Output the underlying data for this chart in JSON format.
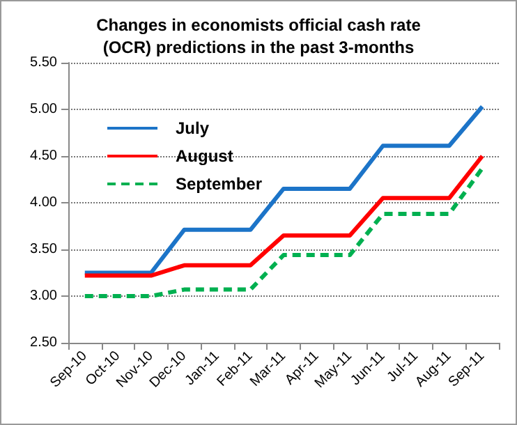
{
  "chart_data": {
    "type": "line",
    "title": "Changes in economists official cash rate\n(OCR) predictions in the past 3-months",
    "categories": [
      "Sep-10",
      "Oct-10",
      "Nov-10",
      "Dec-10",
      "Jan-11",
      "Feb-11",
      "Mar-11",
      "Apr-11",
      "May-11",
      "Jun-11",
      "Jul-11",
      "Aug-11",
      "Sep-11"
    ],
    "series": [
      {
        "name": "July",
        "color": "#1c74c8",
        "values": [
          3.25,
          3.25,
          3.25,
          3.71,
          3.71,
          3.71,
          4.15,
          4.15,
          4.15,
          4.61,
          4.61,
          4.61,
          5.03
        ]
      },
      {
        "name": "August",
        "color": "#ff0000",
        "values": [
          3.22,
          3.22,
          3.22,
          3.33,
          3.33,
          3.33,
          3.65,
          3.65,
          3.65,
          4.05,
          4.05,
          4.05,
          4.5
        ]
      },
      {
        "name": "September",
        "color": "#00b050",
        "line_style": "dashed",
        "values": [
          3.0,
          3.0,
          3.0,
          3.07,
          3.07,
          3.07,
          3.44,
          3.44,
          3.44,
          3.88,
          3.88,
          3.88,
          4.37
        ]
      }
    ],
    "ylim": [
      2.5,
      5.5
    ],
    "yticks": [
      {
        "value": 2.5,
        "label": "2.50"
      },
      {
        "value": 3,
        "label": "3.00"
      },
      {
        "value": 3.5,
        "label": "3.50"
      },
      {
        "value": 4,
        "label": "4.00"
      },
      {
        "value": 4.5,
        "label": "4.50"
      },
      {
        "value": 5,
        "label": "5.00"
      },
      {
        "value": 5.5,
        "label": "5.50"
      }
    ],
    "grid": "y",
    "legend": "top left",
    "marker": "none",
    "line_style": "solid"
  }
}
